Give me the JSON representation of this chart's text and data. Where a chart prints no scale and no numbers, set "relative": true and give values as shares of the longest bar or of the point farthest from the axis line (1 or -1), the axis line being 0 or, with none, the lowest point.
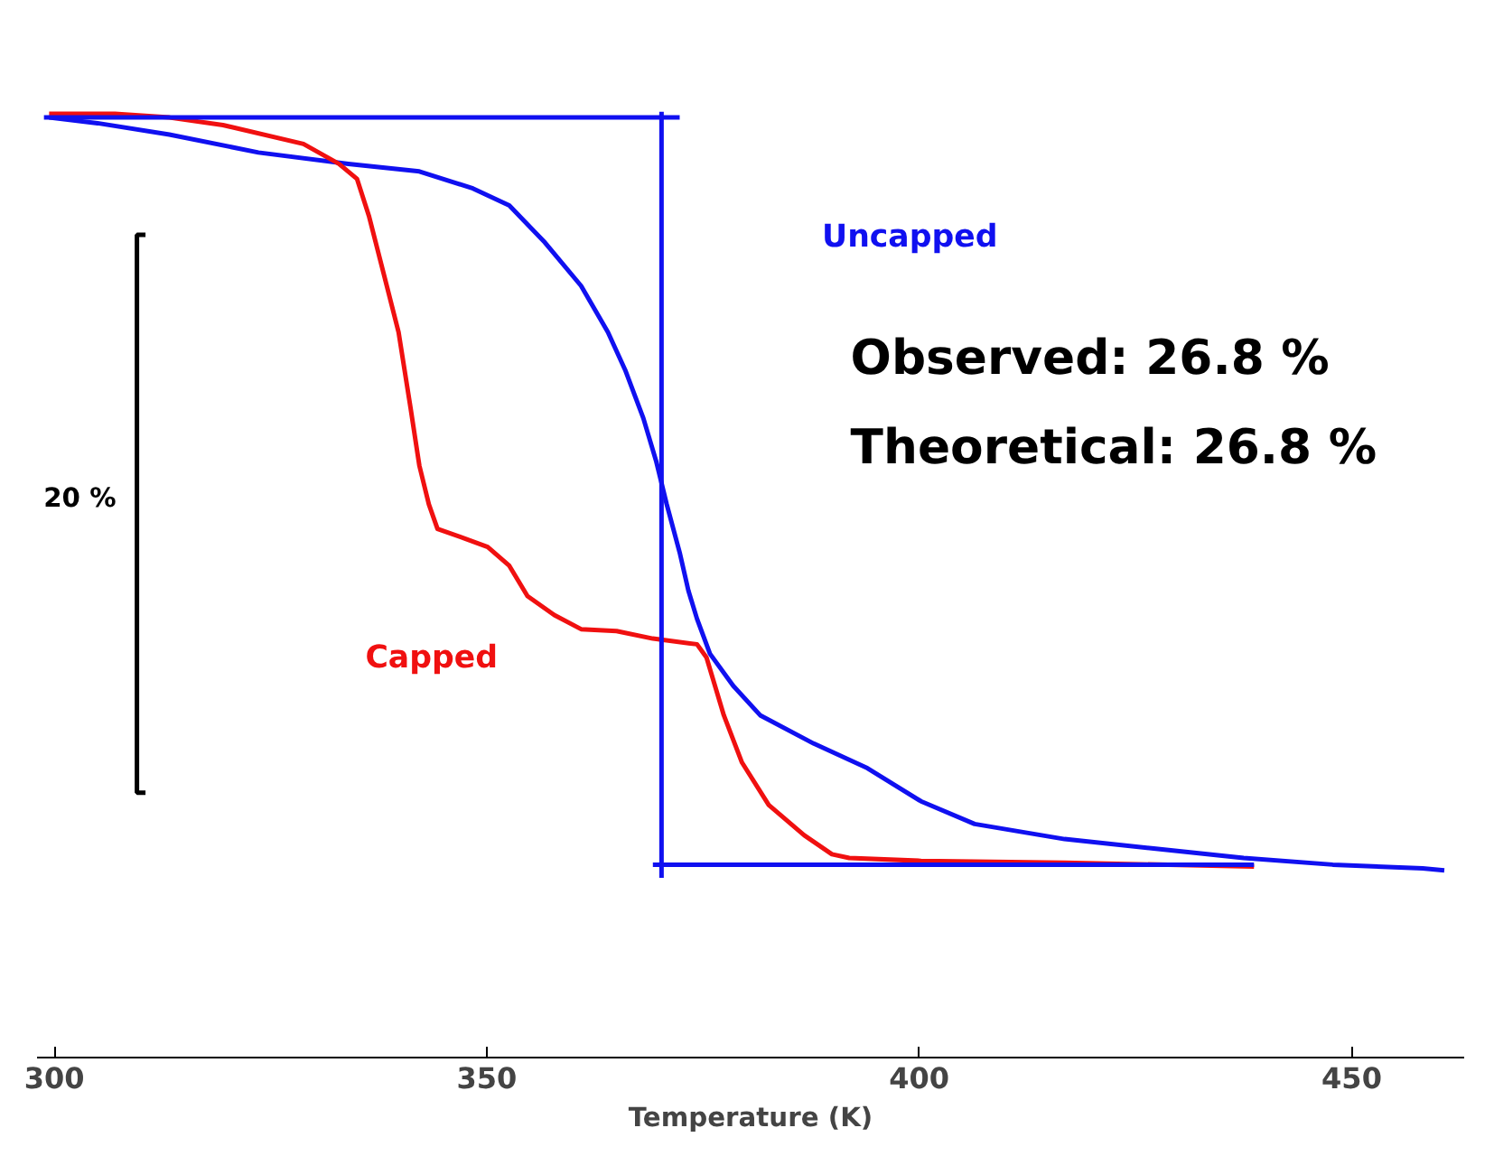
{
  "chart_data": {
    "type": "line",
    "relative": true,
    "xlabel": "Temperature (K)",
    "xlim": [
      298,
      463
    ],
    "xticks": [
      300,
      350,
      400,
      450
    ],
    "tick_labels": "x",
    "grid": false,
    "marker": "none",
    "line_style": "solid",
    "annotations": [
      "20 %",
      "Observed:    26.8 %",
      "Theoretical:  26.8 %"
    ],
    "series": [
      {
        "name": "Uncapped",
        "color": "#1010f0",
        "x": [
          299.4,
          305.0,
          313.3,
          323.6,
          334.0,
          342.2,
          348.4,
          352.6,
          356.7,
          360.9,
          364.0,
          366.0,
          368.1,
          369.6,
          370.8,
          372.3,
          373.3,
          374.3,
          375.8,
          378.5,
          381.6,
          387.8,
          394.0,
          400.2,
          406.4,
          416.8,
          427.1,
          437.5,
          447.8,
          458.2,
          460.7
        ],
        "values": [
          0.994,
          0.988,
          0.976,
          0.957,
          0.945,
          0.937,
          0.919,
          0.901,
          0.862,
          0.816,
          0.767,
          0.727,
          0.676,
          0.63,
          0.585,
          0.534,
          0.494,
          0.464,
          0.427,
          0.393,
          0.362,
          0.332,
          0.306,
          0.271,
          0.247,
          0.231,
          0.221,
          0.211,
          0.204,
          0.2,
          0.198
        ]
      },
      {
        "name": "Capped",
        "color": "#f01010",
        "x": [
          299.4,
          307.0,
          313.3,
          319.5,
          328.8,
          332.9,
          335.0,
          336.4,
          338.1,
          339.8,
          341.2,
          342.2,
          343.3,
          344.3,
          347.4,
          350.1,
          352.6,
          354.7,
          357.8,
          360.9,
          365.0,
          369.2,
          374.3,
          375.4,
          377.4,
          379.5,
          382.6,
          386.7,
          389.9,
          391.9,
          400.2,
          416.8,
          438.7
        ],
        "values": [
          0.998,
          0.998,
          0.994,
          0.986,
          0.966,
          0.945,
          0.929,
          0.889,
          0.828,
          0.767,
          0.686,
          0.626,
          0.585,
          0.559,
          0.549,
          0.54,
          0.52,
          0.488,
          0.468,
          0.453,
          0.451,
          0.443,
          0.437,
          0.423,
          0.362,
          0.312,
          0.267,
          0.235,
          0.215,
          0.211,
          0.208,
          0.206,
          0.202
        ]
      },
      {
        "color": "#1010f0",
        "x": [
          298.8,
          372.3
        ],
        "values": [
          0.994,
          0.994
        ]
      },
      {
        "color": "#1010f0",
        "x": [
          370.2,
          370.2
        ],
        "values": [
          1.0,
          0.19
        ]
      },
      {
        "color": "#1010f0",
        "x": [
          369.2,
          438.7
        ],
        "values": [
          0.204,
          0.204
        ]
      }
    ]
  }
}
